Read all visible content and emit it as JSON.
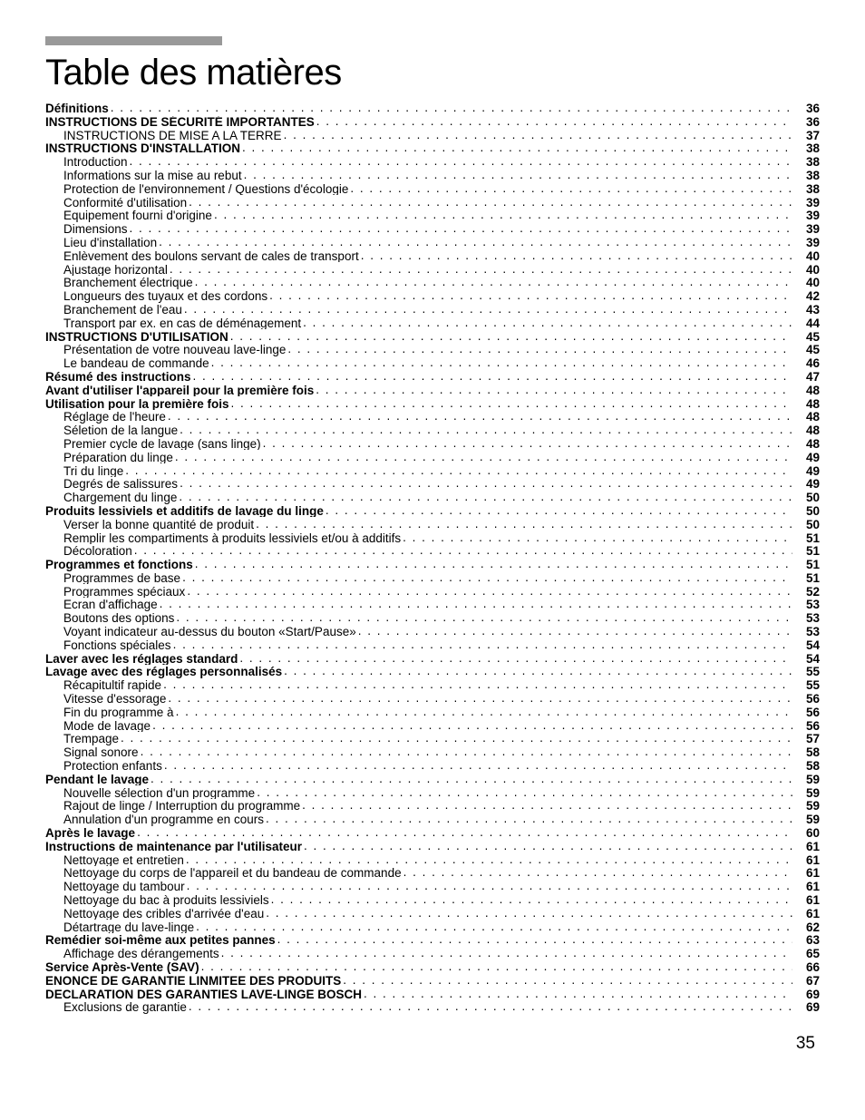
{
  "title": "Table des matières",
  "page_number": "35",
  "colors": {
    "top_bar": "#999999",
    "text": "#000000",
    "background": "#ffffff"
  },
  "typography": {
    "title_fontsize": 40,
    "body_fontsize": 13.5,
    "page_number_fontsize": 19
  },
  "toc": [
    {
      "label": "Définitions",
      "page": "36",
      "level": 0
    },
    {
      "label": "INSTRUCTIONS DE SÉCURITÉ IMPORTANTES",
      "page": "36",
      "level": 0
    },
    {
      "label": "INSTRUCTIONS DE MISE A LA TERRE",
      "page": "37",
      "level": 1
    },
    {
      "label": "INSTRUCTIONS D'INSTALLATION",
      "page": "38",
      "level": 0
    },
    {
      "label": "Introduction",
      "page": "38",
      "level": 1
    },
    {
      "label": "Informations sur la mise au rebut",
      "page": "38",
      "level": 1
    },
    {
      "label": "Protection de l'environnement / Questions d'écologie",
      "page": "38",
      "level": 1
    },
    {
      "label": "Conformité d'utilisation",
      "page": "39",
      "level": 1
    },
    {
      "label": "Equipement fourni d'origine",
      "page": "39",
      "level": 1
    },
    {
      "label": "Dimensions",
      "page": "39",
      "level": 1
    },
    {
      "label": "Lieu d'installation",
      "page": "39",
      "level": 1
    },
    {
      "label": "Enlèvement des boulons servant de cales de transport",
      "page": "40",
      "level": 1
    },
    {
      "label": "Ajustage horizontal",
      "page": "40",
      "level": 1
    },
    {
      "label": "Branchement électrique",
      "page": "40",
      "level": 1
    },
    {
      "label": "Longueurs des tuyaux et des cordons",
      "page": "42",
      "level": 1
    },
    {
      "label": "Branchement de l'eau",
      "page": "43",
      "level": 1
    },
    {
      "label": "Transport par ex. en cas de déménagement",
      "page": "44",
      "level": 1
    },
    {
      "label": "INSTRUCTIONS D'UTILISATION",
      "page": "45",
      "level": 0
    },
    {
      "label": "Présentation de votre nouveau lave-linge",
      "page": "45",
      "level": 1
    },
    {
      "label": "Le bandeau de commande",
      "page": "46",
      "level": 1
    },
    {
      "label": "Résumé des instructions",
      "page": "47",
      "level": 0
    },
    {
      "label": "Avant d'utiliser l'appareil pour la première fois",
      "page": "48",
      "level": 0
    },
    {
      "label": "Utilisation pour la première fois",
      "page": "48",
      "level": 0
    },
    {
      "label": "Réglage de l'heure",
      "page": "48",
      "level": 1
    },
    {
      "label": "Séletion de la langue",
      "page": "48",
      "level": 1
    },
    {
      "label": "Premier cycle de lavage (sans linge)",
      "page": "48",
      "level": 1
    },
    {
      "label": "Préparation du linge",
      "page": "49",
      "level": 1
    },
    {
      "label": "Tri du linge",
      "page": "49",
      "level": 1
    },
    {
      "label": "Degrés de salissures",
      "page": "49",
      "level": 1
    },
    {
      "label": "Chargement du linge",
      "page": "50",
      "level": 1
    },
    {
      "label": "Produits lessiviels et additifs de lavage du linge",
      "page": "50",
      "level": 0
    },
    {
      "label": "Verser la bonne quantité de produit",
      "page": "50",
      "level": 1
    },
    {
      "label": "Remplir les compartiments à produits lessiviels et/ou à additifs",
      "page": "51",
      "level": 1
    },
    {
      "label": "Décoloration",
      "page": "51",
      "level": 1
    },
    {
      "label": "Programmes et fonctions",
      "page": "51",
      "level": 0
    },
    {
      "label": "Programmes de base",
      "page": "51",
      "level": 1
    },
    {
      "label": "Programmes spéciaux",
      "page": "52",
      "level": 1
    },
    {
      "label": "Ecran d'affichage",
      "page": "53",
      "level": 1
    },
    {
      "label": "Boutons des options",
      "page": "53",
      "level": 1
    },
    {
      "label": "Voyant indicateur au-dessus du bouton «Start/Pause»",
      "page": "53",
      "level": 1
    },
    {
      "label": "Fonctions spéciales",
      "page": "54",
      "level": 1
    },
    {
      "label": "Laver avec les réglages standard",
      "page": "54",
      "level": 0
    },
    {
      "label": "Lavage avec des réglages personnalisés",
      "page": "55",
      "level": 0
    },
    {
      "label": "Récapitultif rapide",
      "page": "55",
      "level": 1
    },
    {
      "label": "Vitesse d'essorage",
      "page": "56",
      "level": 1
    },
    {
      "label": "Fin du programme à",
      "page": "56",
      "level": 1
    },
    {
      "label": "Mode de lavage",
      "page": "56",
      "level": 1
    },
    {
      "label": "Trempage",
      "page": "57",
      "level": 1
    },
    {
      "label": "Signal sonore",
      "page": "58",
      "level": 1
    },
    {
      "label": "Protection enfants",
      "page": "58",
      "level": 1
    },
    {
      "label": "Pendant le lavage",
      "page": "59",
      "level": 0
    },
    {
      "label": "Nouvelle sélection d'un programme",
      "page": "59",
      "level": 1
    },
    {
      "label": "Rajout de linge / Interruption du programme",
      "page": "59",
      "level": 1
    },
    {
      "label": "Annulation d'un programme en cours",
      "page": "59",
      "level": 1
    },
    {
      "label": "Après le lavage",
      "page": "60",
      "level": 0
    },
    {
      "label": "Instructions de maintenance par l'utilisateur",
      "page": "61",
      "level": 0
    },
    {
      "label": "Nettoyage et entretien",
      "page": "61",
      "level": 1
    },
    {
      "label": "Nettoyage du corps de l'appareil et du bandeau de commande",
      "page": "61",
      "level": 1
    },
    {
      "label": "Nettoyage du tambour",
      "page": "61",
      "level": 1
    },
    {
      "label": "Nettoyage du bac à produits lessiviels",
      "page": "61",
      "level": 1
    },
    {
      "label": "Nettoyage des cribles d'arrivée d'eau",
      "page": "61",
      "level": 1
    },
    {
      "label": "Détartrage du lave-linge",
      "page": "62",
      "level": 1
    },
    {
      "label": "Remédier soi-même aux petites pannes",
      "page": "63",
      "level": 0
    },
    {
      "label": "Affichage des dérangements",
      "page": "65",
      "level": 1
    },
    {
      "label": "Service Après-Vente (SAV)",
      "page": "66",
      "level": 0
    },
    {
      "label": "ENONCE DE GARANTIE LINMITEE DES PRODUITS",
      "page": "67",
      "level": 0
    },
    {
      "label": "DECLARATION DES GARANTIES LAVE-LINGE BOSCH",
      "page": "69",
      "level": 0
    },
    {
      "label": "Exclusions de garantie",
      "page": "69",
      "level": 1
    }
  ]
}
